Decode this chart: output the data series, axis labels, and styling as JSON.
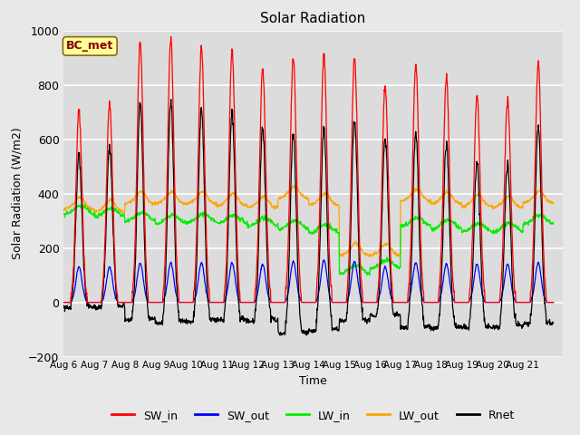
{
  "title": "Solar Radiation",
  "xlabel": "Time",
  "ylabel": "Solar Radiation (W/m2)",
  "ylim": [
    -200,
    1000
  ],
  "num_days": 16,
  "bg_color": "#e8e8e8",
  "plot_bg_color": "#dcdcdc",
  "colors": {
    "SW_in": "#ff0000",
    "SW_out": "#0000ff",
    "LW_in": "#00ee00",
    "LW_out": "#ffa500",
    "Rnet": "#000000"
  },
  "annotation_text": "BC_met",
  "annotation_box_color": "#ffff99",
  "annotation_text_color": "#8b0000",
  "tick_labels": [
    "Aug 6",
    "Aug 7",
    "Aug 8",
    "Aug 9",
    "Aug 10",
    "Aug 11",
    "Aug 12",
    "Aug 13",
    "Aug 14",
    "Aug 15",
    "Aug 16",
    "Aug 17",
    "Aug 18",
    "Aug 19",
    "Aug 20",
    "Aug 21"
  ],
  "SW_in_peaks": [
    700,
    730,
    960,
    970,
    940,
    925,
    860,
    900,
    910,
    900,
    795,
    875,
    830,
    760,
    750,
    880
  ],
  "SW_out_peaks": [
    130,
    130,
    145,
    145,
    145,
    145,
    140,
    150,
    155,
    150,
    130,
    145,
    140,
    140,
    140,
    145
  ],
  "LW_in_base": [
    340,
    330,
    315,
    305,
    310,
    305,
    295,
    285,
    270,
    120,
    140,
    295,
    285,
    275,
    275,
    305
  ],
  "LW_out_base": [
    355,
    345,
    375,
    375,
    375,
    368,
    360,
    395,
    370,
    185,
    185,
    385,
    375,
    365,
    360,
    378
  ],
  "Rnet_night": -90
}
